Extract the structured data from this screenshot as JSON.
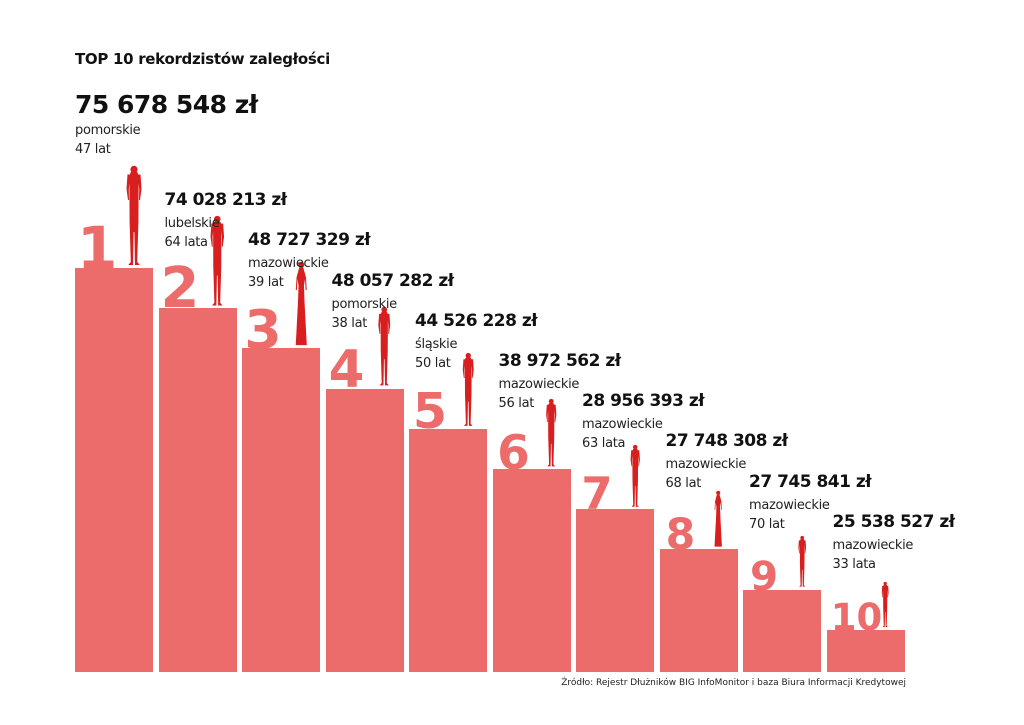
{
  "colors": {
    "bar": "#ec6b6b",
    "rank": "#ec6b6b",
    "figure": "#d81e1e",
    "text": "#111111"
  },
  "chart_data": {
    "type": "bar",
    "title": "TOP 10 rekordzistów zaległości",
    "source": "Źródło: Rejestr Dłużników BIG InfoMonitor i baza Biura Informacji Kredytowej",
    "categories": [
      "1",
      "2",
      "3",
      "4",
      "5",
      "6",
      "7",
      "8",
      "9",
      "10"
    ],
    "values": [
      75678548,
      74028213,
      48727329,
      48057282,
      44526228,
      38972562,
      28956393,
      27748308,
      27745841,
      25538527
    ],
    "items": [
      {
        "rank": "1",
        "amount": "75 678 548 zł",
        "region": "pomorskie",
        "age": "47 lat",
        "gender": "male"
      },
      {
        "rank": "2",
        "amount": "74 028 213 zł",
        "region": "lubelskie",
        "age": "64 lata",
        "gender": "male"
      },
      {
        "rank": "3",
        "amount": "48 727 329 zł",
        "region": "mazowieckie",
        "age": "39 lat",
        "gender": "female"
      },
      {
        "rank": "4",
        "amount": "48 057 282 zł",
        "region": "pomorskie",
        "age": "38 lat",
        "gender": "male"
      },
      {
        "rank": "5",
        "amount": "44 526 228 zł",
        "region": "śląskie",
        "age": "50 lat",
        "gender": "male"
      },
      {
        "rank": "6",
        "amount": "38 972 562 zł",
        "region": "mazowieckie",
        "age": "56 lat",
        "gender": "male"
      },
      {
        "rank": "7",
        "amount": "28 956 393 zł",
        "region": "mazowieckie",
        "age": "63 lata",
        "gender": "male"
      },
      {
        "rank": "8",
        "amount": "27 748 308 zł",
        "region": "mazowieckie",
        "age": "68 lat",
        "gender": "female"
      },
      {
        "rank": "9",
        "amount": "27 745 841 zł",
        "region": "mazowieckie",
        "age": "70 lat",
        "gender": "male"
      },
      {
        "rank": "10",
        "amount": "25 538 527 zł",
        "region": "mazowieckie",
        "age": "33 lata",
        "gender": "male"
      }
    ]
  }
}
